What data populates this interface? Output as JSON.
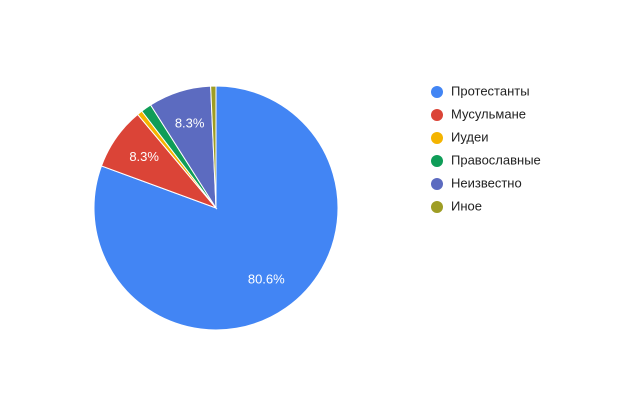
{
  "chart_data": {
    "type": "pie",
    "categories": [
      "Протестанты",
      "Мусульмане",
      "Иудеи",
      "Православные",
      "Неизвестно",
      "Иное"
    ],
    "values": [
      80.6,
      8.3,
      0.7,
      1.4,
      8.3,
      0.7
    ],
    "value_labels": [
      "80.6%",
      "8.3%",
      null,
      null,
      "8.3%",
      null
    ],
    "colors": [
      "#4285f4",
      "#db4437",
      "#f4b400",
      "#0f9d58",
      "#5c6bc0",
      "#9e9d24"
    ],
    "legend": "right"
  }
}
